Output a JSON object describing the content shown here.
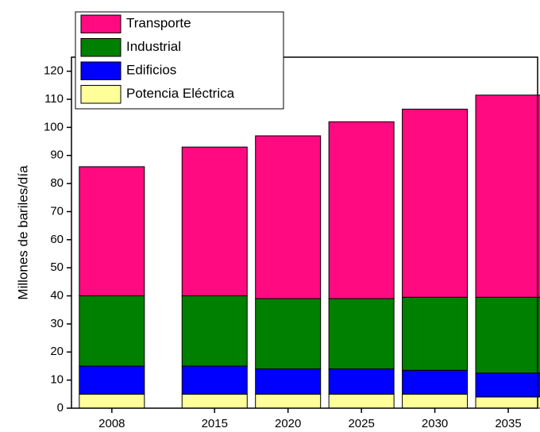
{
  "chart_data": {
    "type": "stacked_bar",
    "y_label": "Millones de bariles/día",
    "x": [
      2008,
      2015,
      2020,
      2025,
      2030,
      2035
    ],
    "series": [
      {
        "name": "Potencia Eléctrica",
        "color": "#ffff99",
        "values": [
          5,
          5,
          5,
          5,
          5,
          4
        ]
      },
      {
        "name": "Edificios",
        "color": "#0000ff",
        "values": [
          10,
          10,
          9,
          9,
          8.5,
          8.5
        ]
      },
      {
        "name": "Industrial",
        "color": "#008000",
        "values": [
          25,
          25,
          25,
          25,
          26,
          27
        ]
      },
      {
        "name": "Transporte",
        "color": "#ff0a80",
        "values": [
          46,
          53,
          58,
          63,
          67,
          72
        ]
      }
    ],
    "xlim": [
      2005.25,
      2037
    ],
    "xticks": [
      2008,
      2015,
      2020,
      2025,
      2030,
      2035
    ],
    "ylim": [
      0,
      125
    ],
    "yticks": [
      0,
      10,
      20,
      30,
      40,
      50,
      60,
      70,
      80,
      90,
      100,
      110,
      120
    ],
    "legend": "upper left"
  }
}
